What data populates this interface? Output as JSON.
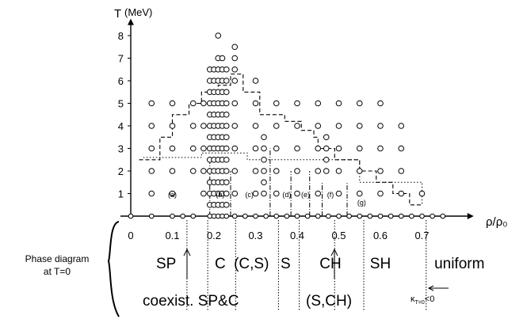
{
  "chart_data": {
    "type": "scatter",
    "title": "",
    "xlabel": "ρ/ρ₀",
    "ylabel": "T",
    "yunit": "(MeV)",
    "xlim": [
      0,
      0.79
    ],
    "ylim": [
      0,
      8.4
    ],
    "x_ticks": [
      "0",
      "0.1",
      "0.2",
      "0.3",
      "0.4",
      "0.5",
      "0.6",
      "0.7"
    ],
    "y_ticks": [
      "1",
      "2",
      "3",
      "4",
      "5",
      "6",
      "7",
      "8"
    ],
    "grid": false,
    "marker": "open-circle",
    "series": [
      {
        "points": [
          [
            0.05,
            1
          ],
          [
            0.05,
            2
          ],
          [
            0.05,
            3
          ],
          [
            0.05,
            4
          ],
          [
            0.05,
            5
          ],
          [
            0.1,
            1
          ],
          [
            0.1,
            2
          ],
          [
            0.1,
            3
          ],
          [
            0.1,
            4
          ],
          [
            0.1,
            5
          ],
          [
            0.15,
            2
          ],
          [
            0.15,
            3
          ],
          [
            0.15,
            4
          ],
          [
            0.15,
            5
          ],
          [
            0.175,
            1
          ],
          [
            0.175,
            2
          ],
          [
            0.175,
            3
          ],
          [
            0.175,
            4
          ],
          [
            0.175,
            5
          ],
          [
            0.19,
            0.5
          ],
          [
            0.19,
            1
          ],
          [
            0.19,
            1.5
          ],
          [
            0.19,
            2
          ],
          [
            0.19,
            2.5
          ],
          [
            0.19,
            3
          ],
          [
            0.19,
            3.5
          ],
          [
            0.19,
            4
          ],
          [
            0.19,
            4.5
          ],
          [
            0.19,
            5
          ],
          [
            0.19,
            5.5
          ],
          [
            0.19,
            6
          ],
          [
            0.19,
            6.5
          ],
          [
            0.2,
            0.5
          ],
          [
            0.2,
            1
          ],
          [
            0.2,
            1.5
          ],
          [
            0.2,
            2
          ],
          [
            0.2,
            2.5
          ],
          [
            0.2,
            3
          ],
          [
            0.2,
            3.5
          ],
          [
            0.2,
            4
          ],
          [
            0.2,
            4.5
          ],
          [
            0.2,
            5
          ],
          [
            0.2,
            5.5
          ],
          [
            0.2,
            6
          ],
          [
            0.2,
            6.5
          ],
          [
            0.21,
            0.5
          ],
          [
            0.21,
            1
          ],
          [
            0.21,
            1.5
          ],
          [
            0.21,
            2
          ],
          [
            0.21,
            2.5
          ],
          [
            0.21,
            3
          ],
          [
            0.21,
            3.5
          ],
          [
            0.21,
            4
          ],
          [
            0.21,
            4.5
          ],
          [
            0.21,
            5
          ],
          [
            0.21,
            5.5
          ],
          [
            0.21,
            6
          ],
          [
            0.21,
            6.5
          ],
          [
            0.21,
            7
          ],
          [
            0.21,
            8
          ],
          [
            0.22,
            0.5
          ],
          [
            0.22,
            1
          ],
          [
            0.22,
            1.5
          ],
          [
            0.22,
            2
          ],
          [
            0.22,
            2.5
          ],
          [
            0.22,
            3
          ],
          [
            0.22,
            3.5
          ],
          [
            0.22,
            4
          ],
          [
            0.22,
            4.5
          ],
          [
            0.22,
            5
          ],
          [
            0.22,
            5.5
          ],
          [
            0.22,
            6
          ],
          [
            0.22,
            6.5
          ],
          [
            0.22,
            7
          ],
          [
            0.23,
            0.5
          ],
          [
            0.23,
            1
          ],
          [
            0.23,
            1.5
          ],
          [
            0.23,
            2
          ],
          [
            0.23,
            2.5
          ],
          [
            0.23,
            3
          ],
          [
            0.23,
            3.5
          ],
          [
            0.23,
            4
          ],
          [
            0.23,
            4.5
          ],
          [
            0.23,
            5
          ],
          [
            0.23,
            5.5
          ],
          [
            0.23,
            6
          ],
          [
            0.23,
            6.5
          ],
          [
            0.25,
            1
          ],
          [
            0.25,
            2
          ],
          [
            0.25,
            3
          ],
          [
            0.25,
            4
          ],
          [
            0.25,
            5
          ],
          [
            0.25,
            6
          ],
          [
            0.25,
            6.5
          ],
          [
            0.25,
            7
          ],
          [
            0.25,
            7.5
          ],
          [
            0.3,
            1
          ],
          [
            0.3,
            2
          ],
          [
            0.3,
            3
          ],
          [
            0.3,
            4
          ],
          [
            0.3,
            5
          ],
          [
            0.3,
            6
          ],
          [
            0.32,
            1
          ],
          [
            0.32,
            1.5
          ],
          [
            0.32,
            2
          ],
          [
            0.32,
            2.5
          ],
          [
            0.32,
            3
          ],
          [
            0.32,
            3.5
          ],
          [
            0.35,
            1
          ],
          [
            0.35,
            2
          ],
          [
            0.35,
            3
          ],
          [
            0.35,
            4
          ],
          [
            0.35,
            5
          ],
          [
            0.4,
            1
          ],
          [
            0.4,
            2
          ],
          [
            0.4,
            3
          ],
          [
            0.4,
            4
          ],
          [
            0.4,
            5
          ],
          [
            0.45,
            1
          ],
          [
            0.45,
            2
          ],
          [
            0.45,
            3
          ],
          [
            0.45,
            4
          ],
          [
            0.45,
            5
          ],
          [
            0.47,
            2
          ],
          [
            0.47,
            2.5
          ],
          [
            0.47,
            3
          ],
          [
            0.47,
            3.5
          ],
          [
            0.5,
            1
          ],
          [
            0.5,
            2
          ],
          [
            0.5,
            3
          ],
          [
            0.5,
            4
          ],
          [
            0.5,
            5
          ],
          [
            0.55,
            1
          ],
          [
            0.55,
            2
          ],
          [
            0.55,
            3
          ],
          [
            0.55,
            4
          ],
          [
            0.55,
            5
          ],
          [
            0.6,
            1
          ],
          [
            0.6,
            2
          ],
          [
            0.6,
            3
          ],
          [
            0.6,
            4
          ],
          [
            0.6,
            5
          ],
          [
            0.65,
            1
          ],
          [
            0.65,
            2
          ],
          [
            0.65,
            3
          ],
          [
            0.65,
            4
          ],
          [
            0.7,
            1
          ]
        ]
      }
    ],
    "axis_points_x": [
      0.0,
      0.05,
      0.1,
      0.125,
      0.15,
      0.19,
      0.2,
      0.21,
      0.22,
      0.23,
      0.25,
      0.275,
      0.3,
      0.325,
      0.35,
      0.375,
      0.4,
      0.425,
      0.45,
      0.475,
      0.5,
      0.525,
      0.55,
      0.575,
      0.6,
      0.625,
      0.65,
      0.675,
      0.7,
      0.725,
      0.75
    ],
    "region_labels": [
      {
        "text": "(a)",
        "x": 0.1,
        "y": 0.85
      },
      {
        "text": "(b)",
        "x": 0.215,
        "y": 0.85
      },
      {
        "text": "(c)",
        "x": 0.285,
        "y": 0.85
      },
      {
        "text": "(d)",
        "x": 0.375,
        "y": 0.85
      },
      {
        "text": "(e)",
        "x": 0.42,
        "y": 0.85
      },
      {
        "text": "(f)",
        "x": 0.48,
        "y": 0.85
      },
      {
        "text": "(g)",
        "x": 0.555,
        "y": 0.5
      }
    ],
    "phase_boundary_dashed": [
      [
        0.02,
        2.5
      ],
      [
        0.07,
        2.5
      ],
      [
        0.07,
        3.5
      ],
      [
        0.1,
        3.5
      ],
      [
        0.1,
        4.5
      ],
      [
        0.14,
        4.5
      ],
      [
        0.14,
        5
      ],
      [
        0.17,
        5
      ],
      [
        0.17,
        5.5
      ],
      [
        0.21,
        5.5
      ],
      [
        0.21,
        5.8
      ],
      [
        0.24,
        5.8
      ],
      [
        0.24,
        6.3
      ],
      [
        0.27,
        6.3
      ],
      [
        0.27,
        5.5
      ],
      [
        0.31,
        5.5
      ],
      [
        0.31,
        4.5
      ],
      [
        0.37,
        4.5
      ],
      [
        0.37,
        4.2
      ],
      [
        0.41,
        4.2
      ],
      [
        0.41,
        3.8
      ],
      [
        0.44,
        3.8
      ],
      [
        0.44,
        3.5
      ],
      [
        0.45,
        3.5
      ],
      [
        0.45,
        3
      ],
      [
        0.49,
        3
      ],
      [
        0.49,
        2.5
      ],
      [
        0.55,
        2.5
      ],
      [
        0.55,
        2
      ],
      [
        0.59,
        2
      ],
      [
        0.59,
        1.5
      ],
      [
        0.63,
        1.5
      ],
      [
        0.63,
        1
      ],
      [
        0.67,
        1
      ],
      [
        0.67,
        0.5
      ],
      [
        0.7,
        0.5
      ]
    ],
    "phase_boundary_dotted": [
      [
        0.03,
        2.6
      ],
      [
        0.17,
        2.6
      ],
      [
        0.17,
        2.8
      ],
      [
        0.28,
        2.8
      ],
      [
        0.28,
        2.5
      ],
      [
        0.55,
        2.5
      ],
      [
        0.55,
        1.5
      ],
      [
        0.7,
        1.5
      ],
      [
        0.7,
        0.5
      ]
    ],
    "region_boundaries_dashdot": [
      {
        "x": 0.19,
        "y": [
          0,
          2.5
        ]
      },
      {
        "x": 0.24,
        "y": [
          0,
          2
        ]
      },
      {
        "x": 0.335,
        "y": [
          0,
          3
        ]
      },
      {
        "x": 0.385,
        "y": [
          0,
          2
        ]
      },
      {
        "x": 0.43,
        "y": [
          0,
          2
        ]
      },
      {
        "x": 0.46,
        "y": [
          0,
          1.5
        ]
      },
      {
        "x": 0.52,
        "y": [
          0,
          1.5
        ]
      }
    ]
  },
  "phase_diagram": {
    "label_line1": "Phase diagram",
    "label_line2": "at T=0",
    "phases": [
      {
        "text": "SP",
        "x": 0.085
      },
      {
        "text": "C",
        "x": 0.215
      },
      {
        "text": "(C,S)",
        "x": 0.29
      },
      {
        "text": "S",
        "x": 0.372
      },
      {
        "text": "CH",
        "x": 0.48
      },
      {
        "text": "SH",
        "x": 0.6
      },
      {
        "text": "uniform",
        "x": 0.79
      }
    ],
    "coexist_text": "coexist. SP&C",
    "sch_text": "(S,CH)",
    "kappa_text": "κ",
    "kappa_sub": "T=0",
    "kappa_rel": "<0",
    "boundaries": [
      0.135,
      0.185,
      0.252,
      0.355,
      0.405,
      0.49,
      0.56,
      0.71
    ]
  }
}
